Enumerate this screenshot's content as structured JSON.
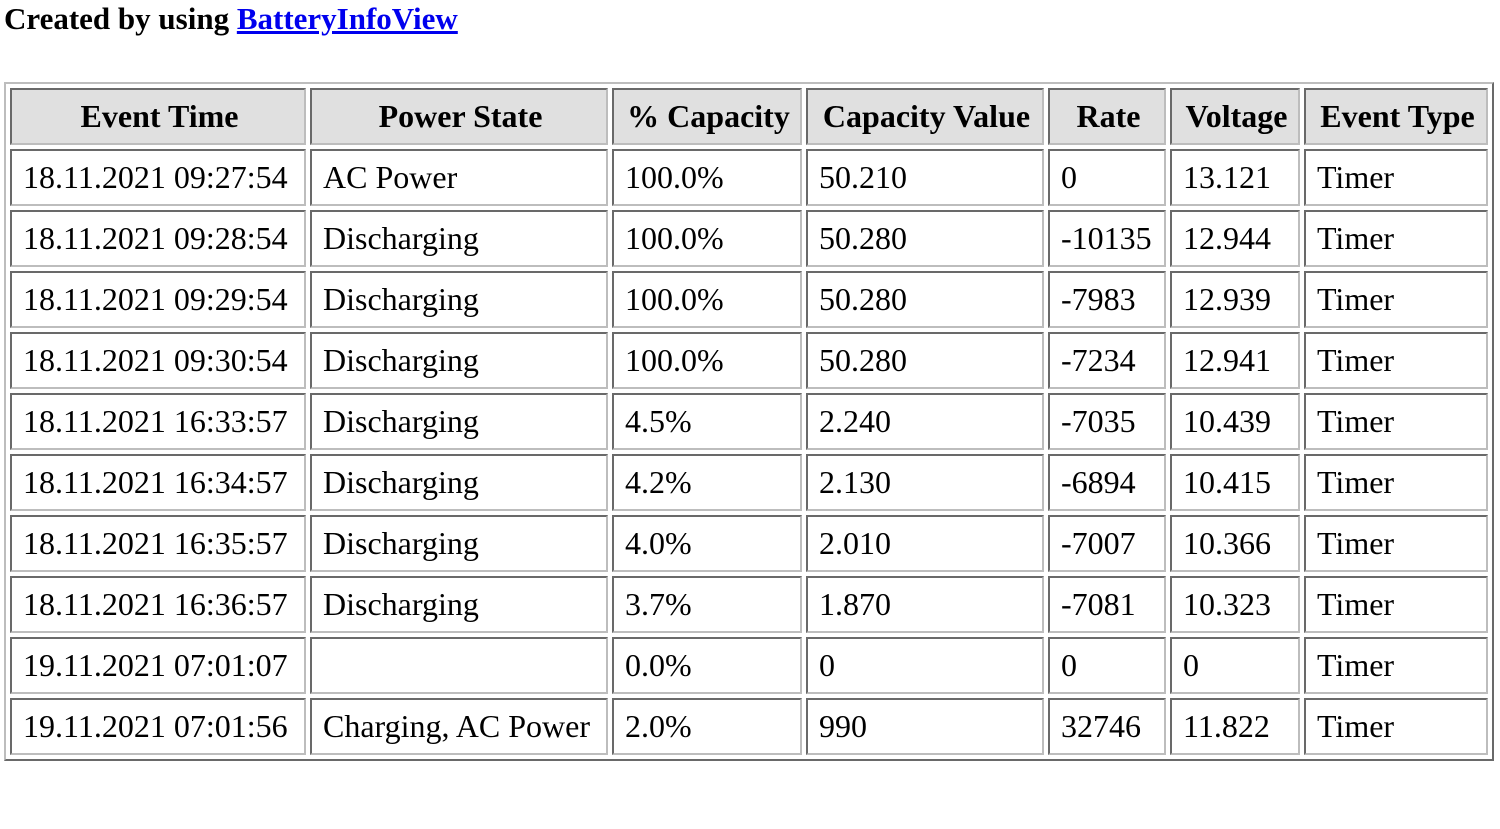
{
  "header": {
    "prefix": "Created by using",
    "link_text": "BatteryInfoView"
  },
  "table": {
    "columns": [
      "Event Time",
      "Power State",
      "% Capacity",
      "Capacity Value",
      "Rate",
      "Voltage",
      "Event Type"
    ],
    "rows": [
      [
        "18.11.2021 09:27:54",
        "AC Power",
        "100.0%",
        "50.210",
        "0",
        "13.121",
        "Timer"
      ],
      [
        "18.11.2021 09:28:54",
        "Discharging",
        "100.0%",
        "50.280",
        "-10135",
        "12.944",
        "Timer"
      ],
      [
        "18.11.2021 09:29:54",
        "Discharging",
        "100.0%",
        "50.280",
        "-7983",
        "12.939",
        "Timer"
      ],
      [
        "18.11.2021 09:30:54",
        "Discharging",
        "100.0%",
        "50.280",
        "-7234",
        "12.941",
        "Timer"
      ],
      [
        "18.11.2021 16:33:57",
        "Discharging",
        "4.5%",
        "2.240",
        "-7035",
        "10.439",
        "Timer"
      ],
      [
        "18.11.2021 16:34:57",
        "Discharging",
        "4.2%",
        "2.130",
        "-6894",
        "10.415",
        "Timer"
      ],
      [
        "18.11.2021 16:35:57",
        "Discharging",
        "4.0%",
        "2.010",
        "-7007",
        "10.366",
        "Timer"
      ],
      [
        "18.11.2021 16:36:57",
        "Discharging",
        "3.7%",
        "1.870",
        "-7081",
        "10.323",
        "Timer"
      ],
      [
        "19.11.2021 07:01:07",
        "",
        "0.0%",
        "0",
        "0",
        "0",
        "Timer"
      ],
      [
        "19.11.2021 07:01:56",
        "Charging, AC Power",
        "2.0%",
        "990",
        "32746",
        "11.822",
        "Timer"
      ]
    ]
  }
}
